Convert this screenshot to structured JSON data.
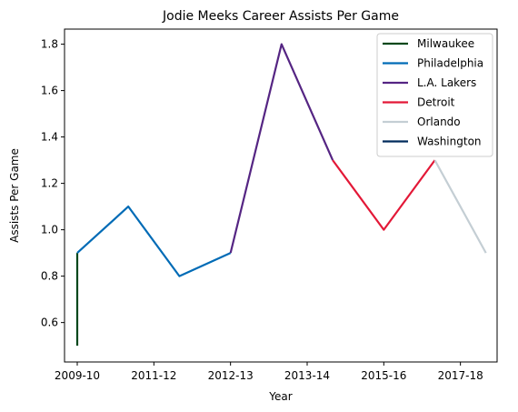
{
  "chart_data": {
    "type": "line",
    "title": "Jodie Meeks Career Assists Per Game",
    "xlabel": "Year",
    "ylabel": "Assists Per Game",
    "x_tick_labels": [
      "2009-10",
      "2011-12",
      "2012-13",
      "2013-14",
      "2015-16",
      "2017-18"
    ],
    "ylim": [
      0.43,
      1.865
    ],
    "yticks": [
      "0.6",
      "0.8",
      "1.0",
      "1.2",
      "1.4",
      "1.6",
      "1.8"
    ],
    "legend_position": "top-right",
    "grid": false,
    "series": [
      {
        "name": "Milwaukee",
        "color": "#00471B",
        "points": [
          {
            "x": 0,
            "y": 0.5
          },
          {
            "x": 0,
            "y": 0.9
          }
        ]
      },
      {
        "name": "Philadelphia",
        "color": "#006BB6",
        "points": [
          {
            "x": 0,
            "y": 0.9
          },
          {
            "x": 0.666,
            "y": 1.1
          },
          {
            "x": 1.333,
            "y": 0.8
          },
          {
            "x": 2,
            "y": 0.9
          }
        ]
      },
      {
        "name": "L.A. Lakers",
        "color": "#552583",
        "points": [
          {
            "x": 2,
            "y": 0.9
          },
          {
            "x": 2.666,
            "y": 1.8
          },
          {
            "x": 3.333,
            "y": 1.3
          }
        ]
      },
      {
        "name": "Detroit",
        "color": "#E31837",
        "points": [
          {
            "x": 3.333,
            "y": 1.3
          },
          {
            "x": 4,
            "y": 1.0
          },
          {
            "x": 4.666,
            "y": 1.3
          }
        ]
      },
      {
        "name": "Orlando",
        "color": "#C4CED4",
        "points": [
          {
            "x": 4.666,
            "y": 1.3
          },
          {
            "x": 5.333,
            "y": 0.9
          }
        ]
      },
      {
        "name": "Washington",
        "color": "#002B5C",
        "points": []
      }
    ]
  }
}
